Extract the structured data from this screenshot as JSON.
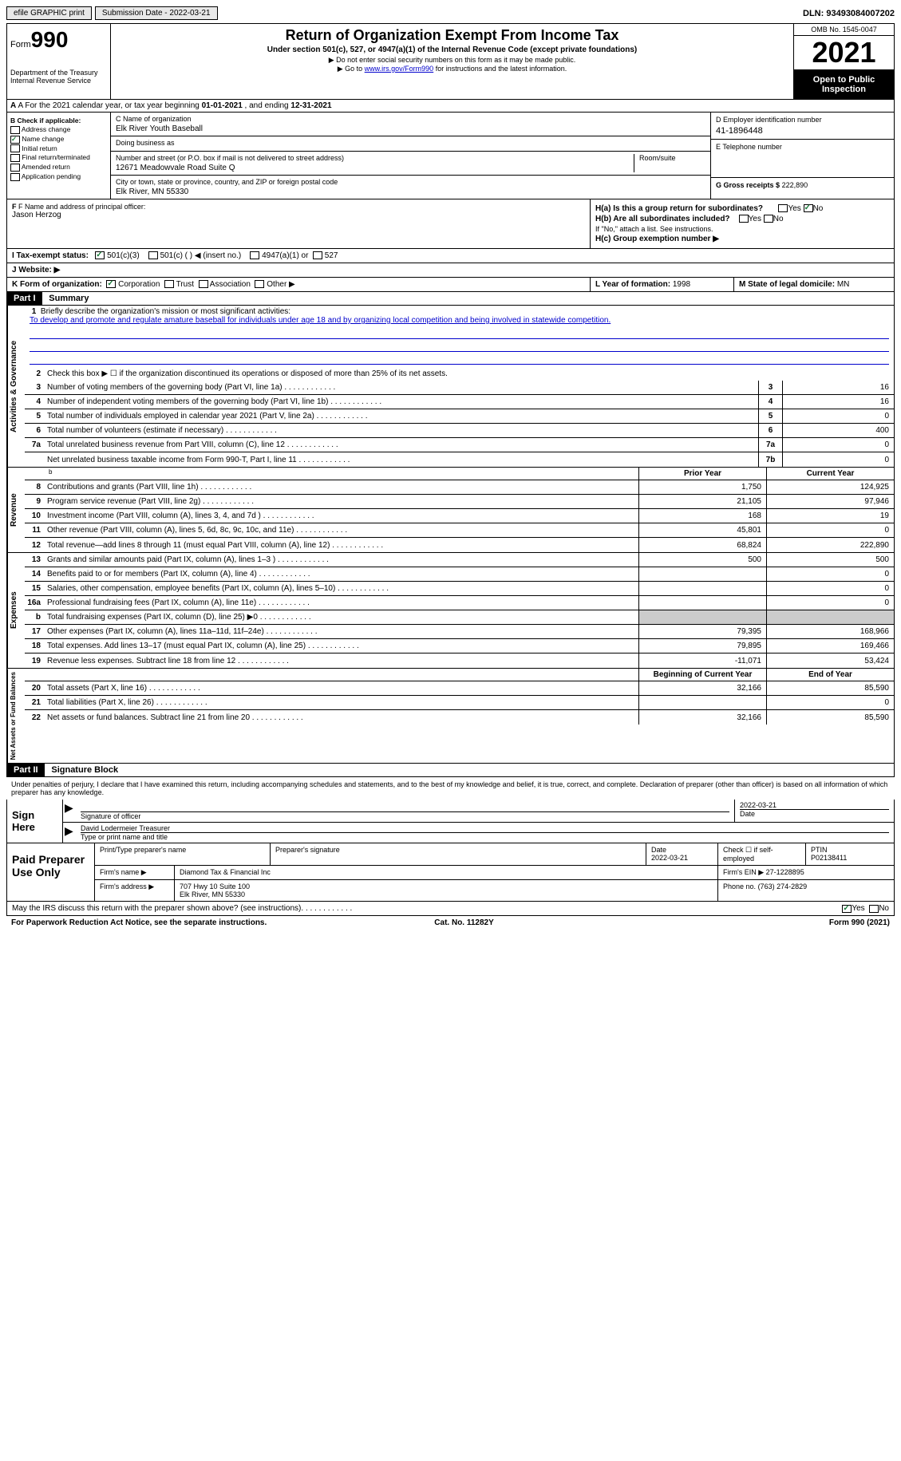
{
  "top": {
    "efile": "efile GRAPHIC print",
    "submission": "Submission Date - 2022-03-21",
    "dln": "DLN: 93493084007202"
  },
  "header": {
    "form_label": "Form",
    "form_number": "990",
    "dept": "Department of the Treasury Internal Revenue Service",
    "title": "Return of Organization Exempt From Income Tax",
    "subtitle": "Under section 501(c), 527, or 4947(a)(1) of the Internal Revenue Code (except private foundations)",
    "note1": "▶ Do not enter social security numbers on this form as it may be made public.",
    "note2_prefix": "▶ Go to ",
    "note2_link": "www.irs.gov/Form990",
    "note2_suffix": " for instructions and the latest information.",
    "omb": "OMB No. 1545-0047",
    "year": "2021",
    "inspection": "Open to Public Inspection"
  },
  "row_a": {
    "prefix": "A For the 2021 calendar year, or tax year beginning ",
    "begin": "01-01-2021",
    "mid": " , and ending ",
    "end": "12-31-2021"
  },
  "col_b": {
    "label": "B Check if applicable:",
    "items": [
      "Address change",
      "Name change",
      "Initial return",
      "Final return/terminated",
      "Amended return",
      "Application pending"
    ],
    "checked_index": 1
  },
  "col_c": {
    "name_label": "C Name of organization",
    "name": "Elk River Youth Baseball",
    "dba_label": "Doing business as",
    "dba": "",
    "addr_label": "Number and street (or P.O. box if mail is not delivered to street address)",
    "room_label": "Room/suite",
    "addr": "12671 Meadowvale Road Suite Q",
    "city_label": "City or town, state or province, country, and ZIP or foreign postal code",
    "city": "Elk River, MN  55330"
  },
  "col_d": {
    "ein_label": "D Employer identification number",
    "ein": "41-1896448",
    "phone_label": "E Telephone number",
    "phone": "",
    "gross_label": "G Gross receipts $",
    "gross": "222,890"
  },
  "col_f": {
    "label": "F Name and address of principal officer:",
    "name": "Jason Herzog"
  },
  "col_h": {
    "ha": "H(a) Is this a group return for subordinates?",
    "hb": "H(b) Are all subordinates included?",
    "hb_note": "If \"No,\" attach a list. See instructions.",
    "hc": "H(c) Group exemption number ▶"
  },
  "row_i": {
    "label": "I Tax-exempt status:",
    "opts": [
      "501(c)(3)",
      "501(c) (  ) ◀ (insert no.)",
      "4947(a)(1) or",
      "527"
    ]
  },
  "row_j": {
    "label": "J Website: ▶"
  },
  "row_klm": {
    "k": "K Form of organization:",
    "k_opts": [
      "Corporation",
      "Trust",
      "Association",
      "Other ▶"
    ],
    "l_label": "L Year of formation:",
    "l_val": "1998",
    "m_label": "M State of legal domicile:",
    "m_val": "MN"
  },
  "part1": {
    "header": "Part I",
    "title": "Summary",
    "line1_label": "Briefly describe the organization's mission or most significant activities:",
    "line1_text": "To develop and promote and regulate amature baseball for individuals under age 18 and by organizing local competition and being involved in statewide competition.",
    "line2": "Check this box ▶ ☐ if the organization discontinued its operations or disposed of more than 25% of its net assets.",
    "side_activities": "Activities & Governance",
    "side_revenue": "Revenue",
    "side_expenses": "Expenses",
    "side_net": "Net Assets or Fund Balances",
    "lines_gov": [
      {
        "n": "3",
        "d": "Number of voting members of the governing body (Part VI, line 1a)",
        "box": "3",
        "v": "16"
      },
      {
        "n": "4",
        "d": "Number of independent voting members of the governing body (Part VI, line 1b)",
        "box": "4",
        "v": "16"
      },
      {
        "n": "5",
        "d": "Total number of individuals employed in calendar year 2021 (Part V, line 2a)",
        "box": "5",
        "v": "0"
      },
      {
        "n": "6",
        "d": "Total number of volunteers (estimate if necessary)",
        "box": "6",
        "v": "400"
      },
      {
        "n": "7a",
        "d": "Total unrelated business revenue from Part VIII, column (C), line 12",
        "box": "7a",
        "v": "0"
      },
      {
        "n": "",
        "d": "Net unrelated business taxable income from Form 990-T, Part I, line 11",
        "box": "7b",
        "v": "0"
      }
    ],
    "prior_year": "Prior Year",
    "current_year": "Current Year",
    "lines_rev": [
      {
        "n": "8",
        "d": "Contributions and grants (Part VIII, line 1h)",
        "py": "1,750",
        "cy": "124,925"
      },
      {
        "n": "9",
        "d": "Program service revenue (Part VIII, line 2g)",
        "py": "21,105",
        "cy": "97,946"
      },
      {
        "n": "10",
        "d": "Investment income (Part VIII, column (A), lines 3, 4, and 7d )",
        "py": "168",
        "cy": "19"
      },
      {
        "n": "11",
        "d": "Other revenue (Part VIII, column (A), lines 5, 6d, 8c, 9c, 10c, and 11e)",
        "py": "45,801",
        "cy": "0"
      },
      {
        "n": "12",
        "d": "Total revenue—add lines 8 through 11 (must equal Part VIII, column (A), line 12)",
        "py": "68,824",
        "cy": "222,890"
      }
    ],
    "lines_exp": [
      {
        "n": "13",
        "d": "Grants and similar amounts paid (Part IX, column (A), lines 1–3 )",
        "py": "500",
        "cy": "500"
      },
      {
        "n": "14",
        "d": "Benefits paid to or for members (Part IX, column (A), line 4)",
        "py": "",
        "cy": "0"
      },
      {
        "n": "15",
        "d": "Salaries, other compensation, employee benefits (Part IX, column (A), lines 5–10)",
        "py": "",
        "cy": "0"
      },
      {
        "n": "16a",
        "d": "Professional fundraising fees (Part IX, column (A), line 11e)",
        "py": "",
        "cy": "0"
      },
      {
        "n": "b",
        "d": "Total fundraising expenses (Part IX, column (D), line 25) ▶0",
        "py": "GREY",
        "cy": "GREY"
      },
      {
        "n": "17",
        "d": "Other expenses (Part IX, column (A), lines 11a–11d, 11f–24e)",
        "py": "79,395",
        "cy": "168,966"
      },
      {
        "n": "18",
        "d": "Total expenses. Add lines 13–17 (must equal Part IX, column (A), line 25)",
        "py": "79,895",
        "cy": "169,466"
      },
      {
        "n": "19",
        "d": "Revenue less expenses. Subtract line 18 from line 12",
        "py": "-11,071",
        "cy": "53,424"
      }
    ],
    "begin_year": "Beginning of Current Year",
    "end_year": "End of Year",
    "lines_net": [
      {
        "n": "20",
        "d": "Total assets (Part X, line 16)",
        "py": "32,166",
        "cy": "85,590"
      },
      {
        "n": "21",
        "d": "Total liabilities (Part X, line 26)",
        "py": "",
        "cy": "0"
      },
      {
        "n": "22",
        "d": "Net assets or fund balances. Subtract line 21 from line 20",
        "py": "32,166",
        "cy": "85,590"
      }
    ]
  },
  "part2": {
    "header": "Part II",
    "title": "Signature Block",
    "declaration": "Under penalties of perjury, I declare that I have examined this return, including accompanying schedules and statements, and to the best of my knowledge and belief, it is true, correct, and complete. Declaration of preparer (other than officer) is based on all information of which preparer has any knowledge.",
    "sign_here": "Sign Here",
    "sig_officer": "Signature of officer",
    "sig_date": "2022-03-21",
    "date_label": "Date",
    "typed_name": "David Lodermeier  Treasurer",
    "typed_label": "Type or print name and title",
    "paid": "Paid Preparer Use Only",
    "print_label": "Print/Type preparer's name",
    "prep_sig_label": "Preparer's signature",
    "prep_date_label": "Date",
    "prep_date": "2022-03-21",
    "check_label": "Check ☐ if self-employed",
    "ptin_label": "PTIN",
    "ptin": "P02138411",
    "firm_name_label": "Firm's name ▶",
    "firm_name": "Diamond Tax & Financial Inc",
    "firm_ein_label": "Firm's EIN ▶",
    "firm_ein": "27-1228895",
    "firm_addr_label": "Firm's address ▶",
    "firm_addr": "707 Hwy 10 Suite 100",
    "firm_city": "Elk River, MN  55330",
    "phone_label": "Phone no.",
    "phone": "(763) 274-2829",
    "discuss": "May the IRS discuss this return with the preparer shown above? (see instructions)"
  },
  "footer": {
    "left": "For Paperwork Reduction Act Notice, see the separate instructions.",
    "mid": "Cat. No. 11282Y",
    "right": "Form 990 (2021)"
  }
}
